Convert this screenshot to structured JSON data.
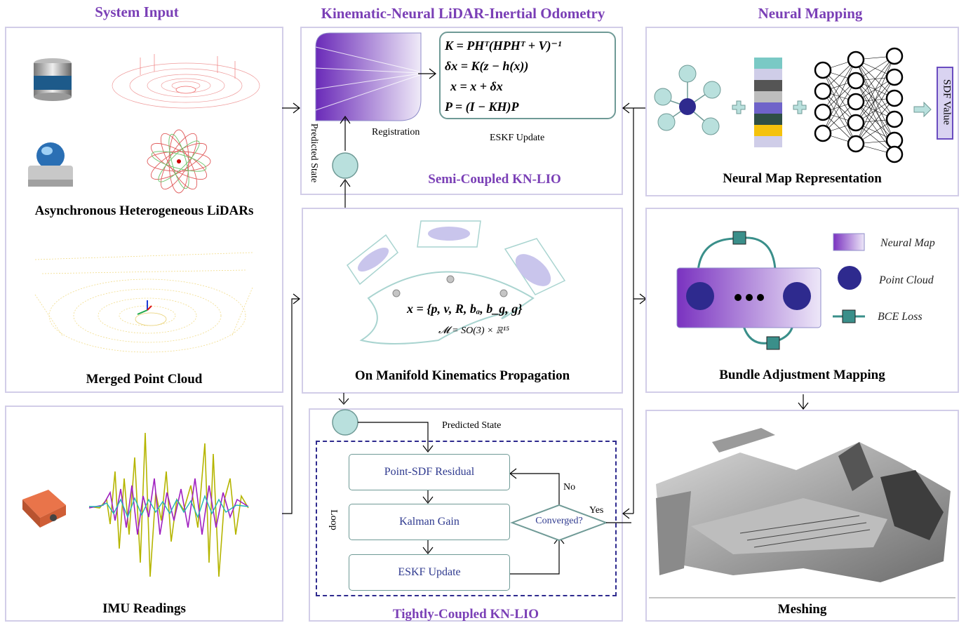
{
  "sections": {
    "input": "System Input",
    "odometry": "Kinematic-Neural LiDAR-Inertial Odometry",
    "mapping": "Neural Mapping"
  },
  "input_panel": {
    "lidars_caption": "Asynchronous Heterogeneous LiDARs",
    "merged_caption": "Merged Point Cloud",
    "imu_caption": "IMU Readings"
  },
  "semi_coupled": {
    "title": "Semi-Coupled KN-LIO",
    "predicted_state": "Predicted State",
    "registration": "Registration",
    "eskf_update": "ESKF Update",
    "equations": [
      "K = PHᵀ(HPHᵀ + V)⁻¹",
      "δx = K(z − h(x))",
      "x = x + δx",
      "P = (I − KH)P"
    ]
  },
  "propagation": {
    "caption": "On Manifold Kinematics Propagation",
    "state_eq": "x = {p, v, R, bₐ, b_g, g}",
    "manifold_eq": "𝓜 = SO(3) × ℝ¹⁵"
  },
  "tight_coupled": {
    "title": "Tightly-Coupled KN-LIO",
    "predicted_state": "Predicted State",
    "loop": "Loop",
    "step1": "Point-SDF Residual",
    "step2": "Kalman Gain",
    "step3": "ESKF Update",
    "decision": "Converged?",
    "no": "No",
    "yes": "Yes"
  },
  "neural_map": {
    "caption": "Neural Map Representation",
    "output": "SDF Value",
    "feature_colors": [
      "#7ac9c5",
      "#cfcde8",
      "#555555",
      "#bdbdbd",
      "#6f63c9",
      "#2f4f45",
      "#f4c20d",
      "#cfcde8"
    ]
  },
  "bundle_adjustment": {
    "caption": "Bundle Adjustment Mapping",
    "legend": [
      "Neural Map",
      "Point Cloud",
      "BCE Loss"
    ]
  },
  "meshing": {
    "caption": "Meshing"
  },
  "colors": {
    "accent": "#7a3fb6",
    "panel_border": "#d2cde8",
    "teal": "#6f9a96",
    "node_fill": "#b9e0dd",
    "dark_blue": "#2e2a8e"
  }
}
